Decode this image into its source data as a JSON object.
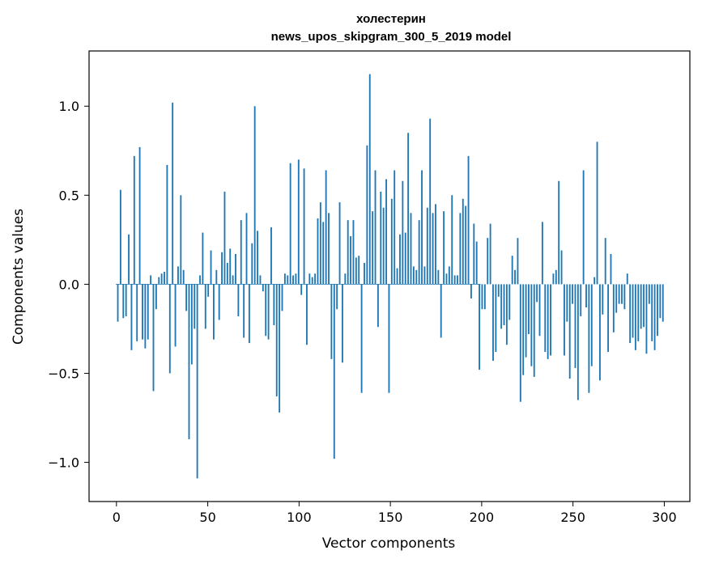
{
  "chart_data": {
    "type": "bar",
    "title_line1": "холестерин",
    "title_line2": "news_upos_skipgram_300_5_2019 model",
    "xlabel": "Vector components",
    "ylabel": "Components values",
    "xlim": [
      -15,
      314
    ],
    "ylim": [
      -1.22,
      1.31
    ],
    "xticks": [
      0,
      50,
      100,
      150,
      200,
      250,
      300
    ],
    "xtick_labels": [
      "0",
      "50",
      "100",
      "150",
      "200",
      "250",
      "300"
    ],
    "yticks": [
      -1.0,
      -0.5,
      0.0,
      0.5,
      1.0
    ],
    "ytick_labels": [
      "−1.0",
      "−0.5",
      "0.0",
      "0.5",
      "1.0"
    ],
    "grid": false,
    "bar_color": "#1f77b4",
    "series": [
      {
        "values": [
          -0.21,
          0.53,
          -0.19,
          -0.18,
          0.28,
          -0.37,
          0.72,
          -0.32,
          0.77,
          -0.31,
          -0.36,
          -0.31,
          0.05,
          -0.6,
          -0.14,
          0.04,
          0.06,
          0.07,
          0.67,
          -0.5,
          1.02,
          -0.35,
          0.1,
          0.5,
          0.08,
          -0.15,
          -0.87,
          -0.45,
          -0.25,
          -1.09,
          0.05,
          0.29,
          -0.25,
          -0.07,
          0.19,
          -0.31,
          0.08,
          -0.2,
          0.18,
          0.52,
          0.12,
          0.2,
          0.05,
          0.17,
          -0.18,
          0.36,
          -0.3,
          0.4,
          -0.33,
          0.23,
          1.0,
          0.3,
          0.05,
          -0.04,
          -0.29,
          -0.31,
          0.32,
          -0.23,
          -0.63,
          -0.72,
          -0.15,
          0.06,
          0.05,
          0.68,
          0.05,
          0.06,
          0.7,
          -0.06,
          0.65,
          -0.34,
          0.06,
          0.04,
          0.06,
          0.37,
          0.46,
          0.35,
          0.64,
          0.4,
          -0.42,
          -0.98,
          -0.14,
          0.46,
          -0.44,
          0.06,
          0.36,
          0.27,
          0.36,
          0.15,
          0.16,
          -0.61,
          0.12,
          0.78,
          1.18,
          0.41,
          0.64,
          -0.24,
          0.52,
          0.43,
          0.59,
          -0.61,
          0.48,
          0.64,
          0.09,
          0.28,
          0.58,
          0.29,
          0.85,
          0.4,
          0.1,
          0.08,
          0.36,
          0.64,
          0.1,
          0.43,
          0.93,
          0.4,
          0.45,
          0.08,
          -0.3,
          0.41,
          0.06,
          0.1,
          0.5,
          0.05,
          0.05,
          0.4,
          0.48,
          0.44,
          0.72,
          -0.08,
          0.34,
          0.24,
          -0.48,
          -0.14,
          -0.14,
          0.26,
          0.34,
          -0.43,
          -0.38,
          -0.07,
          -0.25,
          -0.23,
          -0.34,
          -0.2,
          0.16,
          0.08,
          0.26,
          -0.66,
          -0.51,
          -0.41,
          -0.28,
          -0.46,
          -0.52,
          -0.1,
          -0.29,
          0.35,
          -0.38,
          -0.42,
          -0.4,
          0.06,
          0.08,
          0.58,
          0.19,
          -0.4,
          -0.21,
          -0.53,
          -0.11,
          -0.47,
          -0.65,
          -0.18,
          0.64,
          -0.13,
          -0.61,
          -0.46,
          0.04,
          0.8,
          -0.54,
          -0.17,
          0.26,
          -0.38,
          0.17,
          -0.27,
          -0.16,
          -0.11,
          -0.11,
          -0.14,
          0.06,
          -0.33,
          -0.3,
          -0.37,
          -0.32,
          -0.25,
          -0.24,
          -0.39,
          -0.11,
          -0.32,
          -0.37,
          -0.29,
          -0.19,
          -0.21
        ]
      }
    ]
  }
}
